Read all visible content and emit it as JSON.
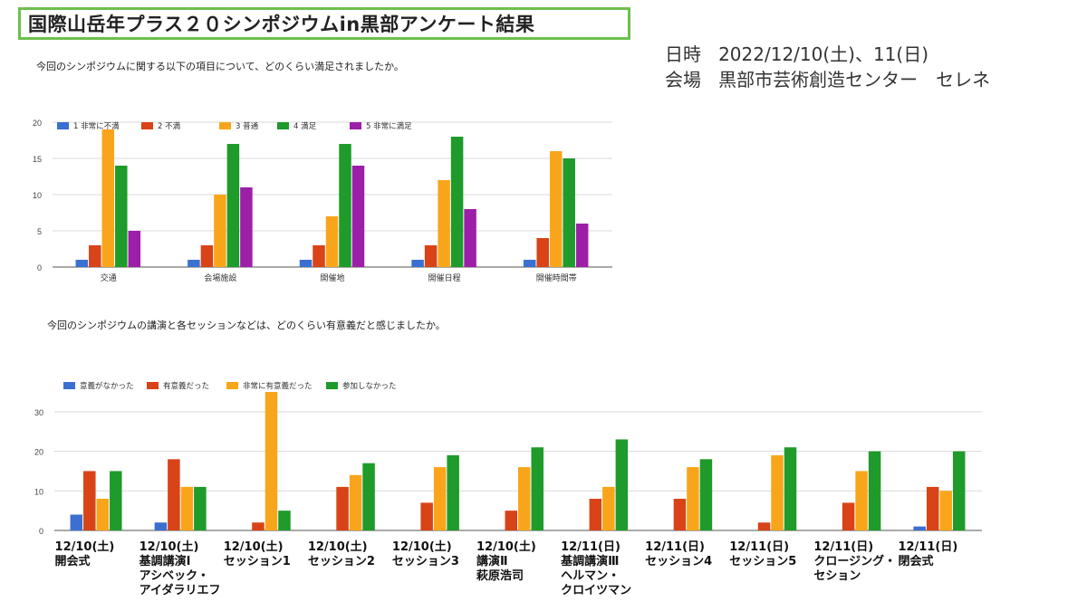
{
  "title": "国際山岳年プラス２０シンポジウムin黒部アンケート結果",
  "info": {
    "date_label": "日時",
    "date_value": "2022/12/10(土)、11(日)",
    "venue_label": "会場",
    "venue_value": "黒部市芸術創造センター　セレネ"
  },
  "colors": {
    "blue": "#3b6fd1",
    "red": "#d84318",
    "orange": "#f9a51b",
    "green": "#1e9b2a",
    "purple": "#9c1fa8",
    "title_border": "#6dbf4e"
  },
  "chart_data": [
    {
      "type": "bar",
      "title": "今回のシンポジウムに関する以下の項目について、どのくらい満足されましたか。",
      "categories": [
        "交通",
        "会場施設",
        "開催地",
        "開催日程",
        "開催時間帯"
      ],
      "series": [
        {
          "name": "1 非常に不満",
          "values": [
            1,
            1,
            1,
            1,
            1
          ]
        },
        {
          "name": "2 不満",
          "values": [
            3,
            3,
            3,
            3,
            4
          ]
        },
        {
          "name": "3 普通",
          "values": [
            19,
            10,
            7,
            12,
            16
          ]
        },
        {
          "name": "4 満足",
          "values": [
            14,
            17,
            17,
            18,
            15
          ]
        },
        {
          "name": "5 非常に満足",
          "values": [
            5,
            11,
            14,
            8,
            6
          ]
        }
      ],
      "ylim": [
        0,
        20
      ],
      "yticks": [
        0,
        5,
        10,
        15,
        20
      ],
      "grid": true,
      "legend": "top-left"
    },
    {
      "type": "bar",
      "title": "今回のシンポジウムの講演と各セッションなどは、どのくらい有意義だと感じましたか。",
      "categories": [
        [
          "12/10(土)",
          "開会式"
        ],
        [
          "12/10(土)",
          "基調講演Ⅰ",
          "アシベック・",
          "アイダラリエフ"
        ],
        [
          "12/10(土)",
          "セッション1"
        ],
        [
          "12/10(土)",
          "セッション2"
        ],
        [
          "12/10(土)",
          "セッション3"
        ],
        [
          "12/10(土)",
          "講演Ⅱ",
          "萩原浩司"
        ],
        [
          "12/11(日)",
          "基調講演Ⅲ",
          "ヘルマン・",
          "クロイツマン"
        ],
        [
          "12/11(日)",
          "セッション4"
        ],
        [
          "12/11(日)",
          "セッション5"
        ],
        [
          "12/11(日)",
          "クロージング・",
          "セション"
        ],
        [
          "12/11(日)",
          "閉会式"
        ]
      ],
      "series": [
        {
          "name": "意義がなかった",
          "values": [
            4,
            2,
            0,
            0,
            0,
            0,
            0,
            0,
            0,
            0,
            1
          ]
        },
        {
          "name": "有意義だった",
          "values": [
            15,
            18,
            2,
            11,
            7,
            5,
            8,
            8,
            2,
            7,
            11
          ]
        },
        {
          "name": "非常に有意義だった",
          "values": [
            8,
            11,
            35,
            14,
            16,
            16,
            11,
            16,
            19,
            15,
            10
          ]
        },
        {
          "name": "参加しなかった",
          "values": [
            15,
            11,
            5,
            17,
            19,
            21,
            23,
            18,
            21,
            20,
            20
          ]
        }
      ],
      "ylim": [
        0,
        35
      ],
      "yticks": [
        0,
        10,
        20,
        30
      ],
      "grid": true,
      "legend": "top-left"
    }
  ]
}
